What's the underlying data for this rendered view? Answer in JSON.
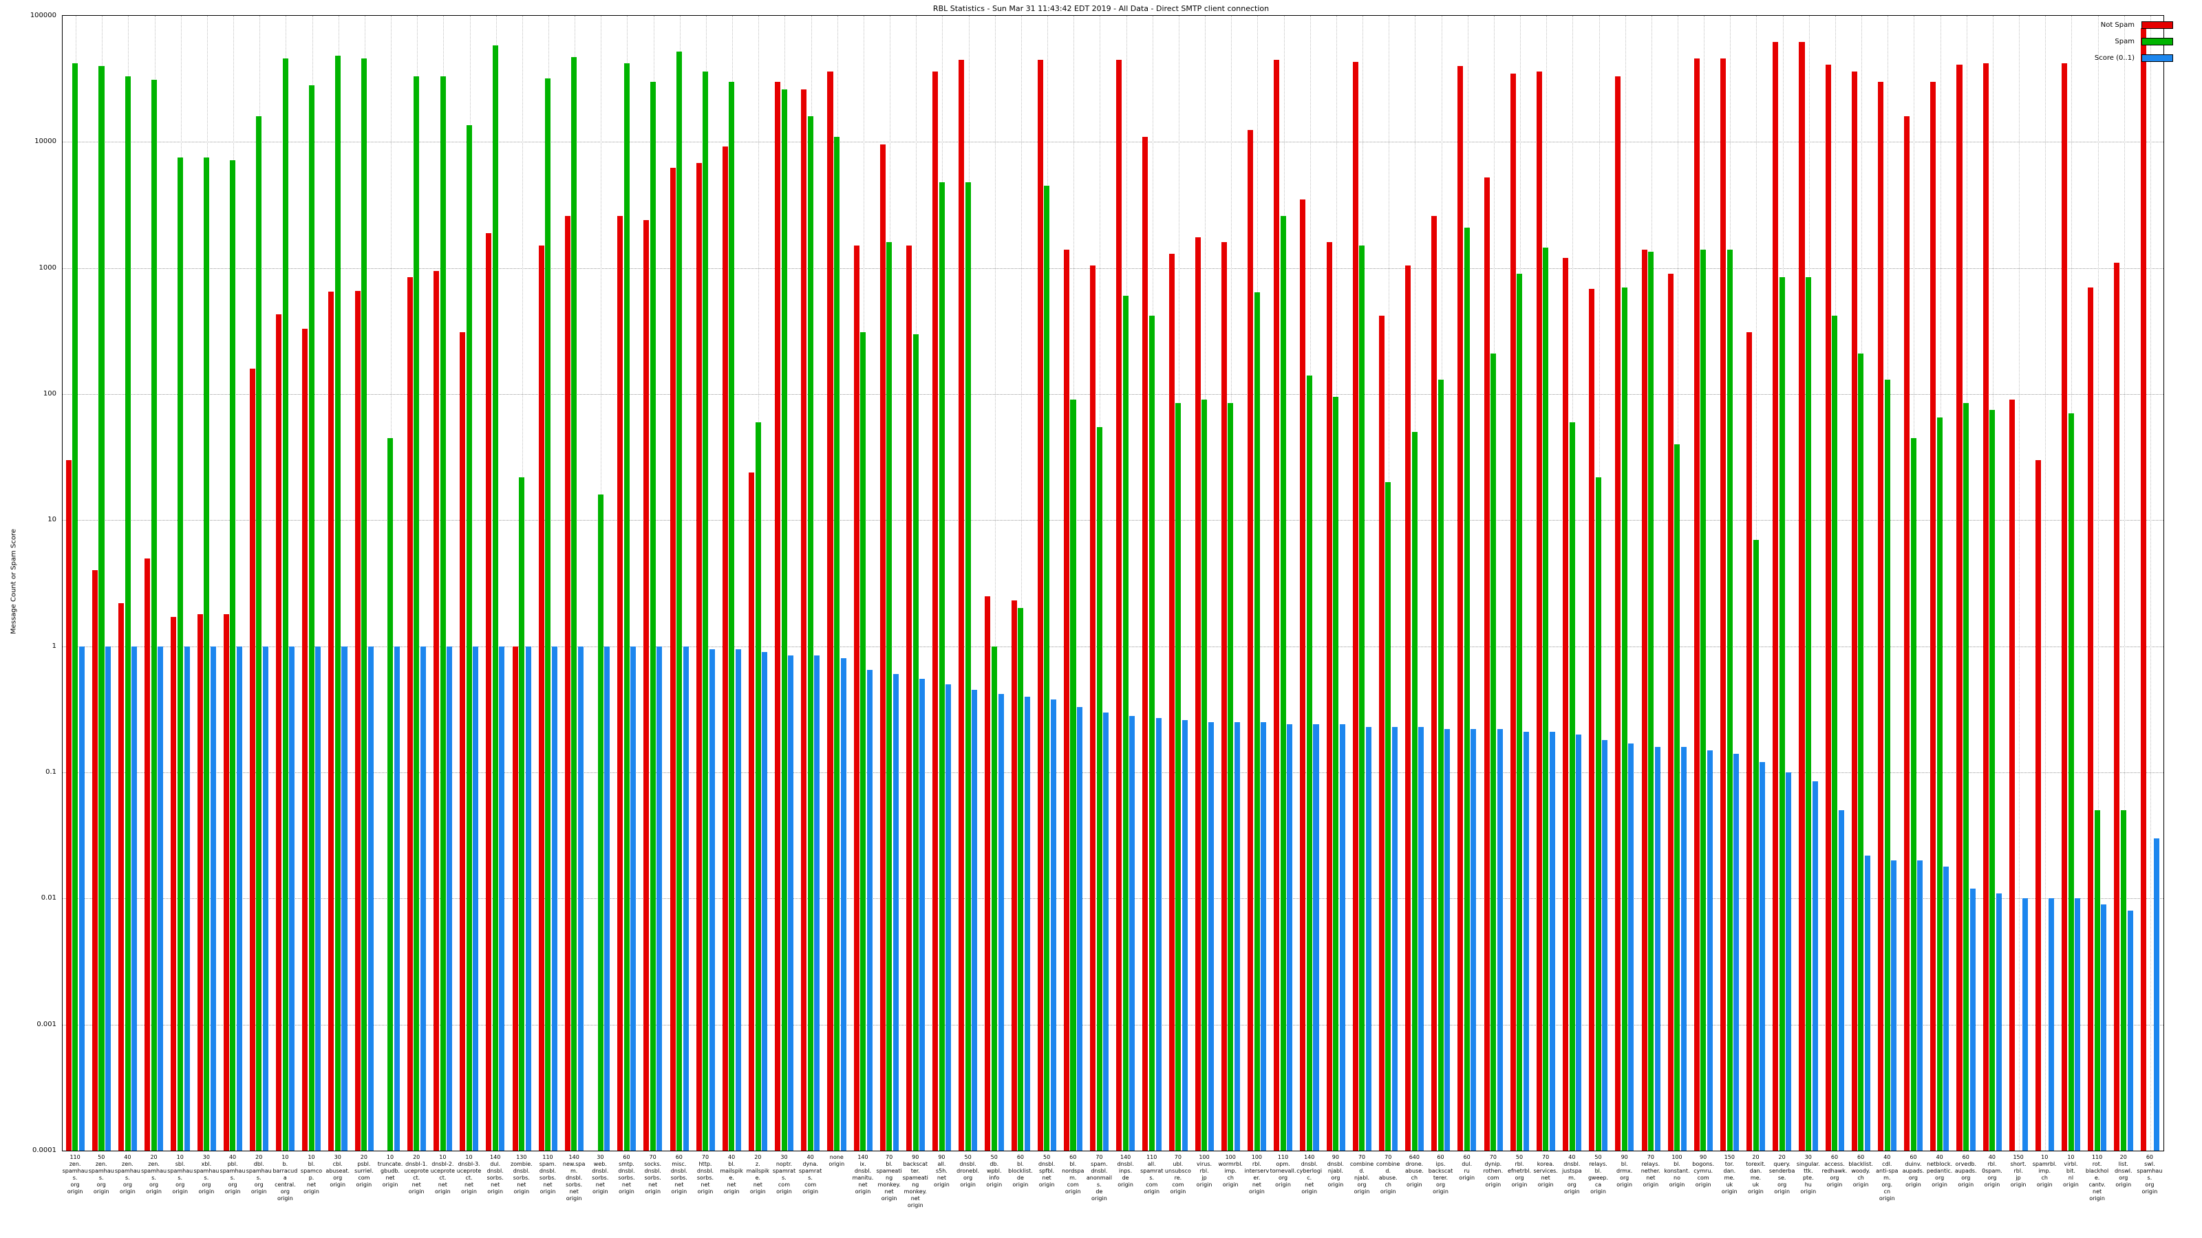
{
  "chart_data": {
    "type": "bar",
    "title": "RBL Statistics - Sun Mar 31 11:43:42 EDT 2019 - All Data - Direct SMTP client connection",
    "ylabel": "Message Count or Spam Score",
    "yscale": "log",
    "ylim": [
      0.0001,
      100000
    ],
    "yticks": [
      "100000",
      "10000",
      "1000",
      "100",
      "10",
      "1",
      "0.1",
      "0.01",
      "0.001",
      "0.0001"
    ],
    "grid": true,
    "legend_position": "top-right",
    "series": [
      {
        "name": "Not Spam",
        "color": "#e60000"
      },
      {
        "name": "Spam",
        "color": "#00b400"
      },
      {
        "name": "Score (0..1)",
        "color": "#1c86ee"
      }
    ],
    "groups": [
      {
        "label": [
          "110",
          "zen.",
          "spamhaus.",
          "org",
          "origin"
        ],
        "values": [
          30,
          42000,
          1
        ]
      },
      {
        "label": [
          "50",
          "zen.",
          "spamhaus.",
          "org",
          "origin"
        ],
        "values": [
          4,
          40000,
          1
        ]
      },
      {
        "label": [
          "40",
          "zen.",
          "spamhaus.",
          "org",
          "origin"
        ],
        "values": [
          2.2,
          33000,
          1
        ]
      },
      {
        "label": [
          "20",
          "zen.",
          "spamhaus.",
          "org",
          "origin"
        ],
        "values": [
          5,
          31000,
          1
        ]
      },
      {
        "label": [
          "10",
          "sbl.",
          "spamhaus.",
          "org",
          "origin"
        ],
        "values": [
          1.7,
          7500,
          1
        ]
      },
      {
        "label": [
          "30",
          "xbl.",
          "spamhaus.",
          "org",
          "origin"
        ],
        "values": [
          1.8,
          7500,
          1
        ]
      },
      {
        "label": [
          "40",
          "pbl.",
          "spamhaus.",
          "org",
          "origin"
        ],
        "values": [
          1.8,
          7200,
          1
        ]
      },
      {
        "label": [
          "20",
          "dbl.",
          "spamhaus.",
          "org",
          "origin"
        ],
        "values": [
          160,
          16000,
          1
        ]
      },
      {
        "label": [
          "10",
          "b.",
          "barracuda",
          "central.",
          "org",
          "origin"
        ],
        "values": [
          430,
          46000,
          1
        ]
      },
      {
        "label": [
          "10",
          "bl.",
          "spamcop.",
          "net",
          "origin"
        ],
        "values": [
          330,
          28000,
          1
        ]
      },
      {
        "label": [
          "30",
          "cbl.",
          "abuseat.",
          "org",
          "origin"
        ],
        "values": [
          650,
          48000,
          1
        ]
      },
      {
        "label": [
          "20",
          "psbl.",
          "surriel.",
          "com",
          "origin"
        ],
        "values": [
          660,
          46000,
          1
        ]
      },
      {
        "label": [
          "10",
          "truncate.",
          "gbudb.",
          "net",
          "origin"
        ],
        "values": [
          0,
          45,
          1
        ]
      },
      {
        "label": [
          "20",
          "dnsbl-1.",
          "uceprotect.",
          "net",
          "origin"
        ],
        "values": [
          850,
          33000,
          1
        ]
      },
      {
        "label": [
          "10",
          "dnsbl-2.",
          "uceprotect.",
          "net",
          "origin"
        ],
        "values": [
          950,
          33000,
          1
        ]
      },
      {
        "label": [
          "10",
          "dnsbl-3.",
          "uceprotect.",
          "net",
          "origin"
        ],
        "values": [
          310,
          13500,
          1
        ]
      },
      {
        "label": [
          "140",
          "dul.",
          "dnsbl.",
          "sorbs.",
          "net",
          "origin"
        ],
        "values": [
          1900,
          58000,
          1
        ]
      },
      {
        "label": [
          "130",
          "zombie.",
          "dnsbl.",
          "sorbs.",
          "net",
          "origin"
        ],
        "values": [
          1,
          22,
          1
        ]
      },
      {
        "label": [
          "110",
          "spam.",
          "dnsbl.",
          "sorbs.",
          "net",
          "origin"
        ],
        "values": [
          1500,
          32000,
          1
        ]
      },
      {
        "label": [
          "140",
          "new.spam.",
          "dnsbl.",
          "sorbs.",
          "net",
          "origin"
        ],
        "values": [
          2600,
          47000,
          1
        ]
      },
      {
        "label": [
          "30",
          "web.",
          "dnsbl.",
          "sorbs.",
          "net",
          "origin"
        ],
        "values": [
          0,
          16,
          1
        ]
      },
      {
        "label": [
          "60",
          "smtp.",
          "dnsbl.",
          "sorbs.",
          "net",
          "origin"
        ],
        "values": [
          2600,
          42000,
          1
        ]
      },
      {
        "label": [
          "70",
          "socks.",
          "dnsbl.",
          "sorbs.",
          "net",
          "origin"
        ],
        "values": [
          2400,
          30000,
          1
        ]
      },
      {
        "label": [
          "60",
          "misc.",
          "dnsbl.",
          "sorbs.",
          "net",
          "origin"
        ],
        "values": [
          6200,
          52000,
          1
        ]
      },
      {
        "label": [
          "70",
          "http.",
          "dnsbl.",
          "sorbs.",
          "net",
          "origin"
        ],
        "values": [
          6800,
          36000,
          0.95
        ]
      },
      {
        "label": [
          "40",
          "bl.",
          "mailspike.",
          "net",
          "origin"
        ],
        "values": [
          9200,
          30000,
          0.95
        ]
      },
      {
        "label": [
          "20",
          "z.",
          "mailspike.",
          "net",
          "origin"
        ],
        "values": [
          24,
          60,
          0.9
        ]
      },
      {
        "label": [
          "30",
          "noptr.",
          "spamrats.",
          "com",
          "origin"
        ],
        "values": [
          30000,
          26000,
          0.85
        ]
      },
      {
        "label": [
          "40",
          "dyna.",
          "spamrats.",
          "com",
          "origin"
        ],
        "values": [
          26000,
          16000,
          0.85
        ]
      },
      {
        "label": [
          "none",
          "origin"
        ],
        "values": [
          36000,
          11000,
          0.8
        ]
      },
      {
        "label": [
          "140",
          "ix.",
          "dnsbl.",
          "manitu.",
          "net",
          "origin"
        ],
        "values": [
          1500,
          310,
          0.65
        ]
      },
      {
        "label": [
          "70",
          "bl.",
          "spameating",
          "monkey.",
          "net",
          "origin"
        ],
        "values": [
          9500,
          1600,
          0.6
        ]
      },
      {
        "label": [
          "90",
          "backscatter.",
          "spameating",
          "monkey.",
          "net",
          "origin"
        ],
        "values": [
          1500,
          300,
          0.55
        ]
      },
      {
        "label": [
          "90",
          "all.",
          "s5h.",
          "net",
          "origin"
        ],
        "values": [
          36000,
          4800,
          0.5
        ]
      },
      {
        "label": [
          "50",
          "dnsbl.",
          "dronebl.",
          "org",
          "origin"
        ],
        "values": [
          45000,
          4800,
          0.45
        ]
      },
      {
        "label": [
          "50",
          "db.",
          "wpbl.",
          "info",
          "origin"
        ],
        "values": [
          2.5,
          1,
          0.42
        ]
      },
      {
        "label": [
          "60",
          "bl.",
          "blocklist.",
          "de",
          "origin"
        ],
        "values": [
          2.3,
          2,
          0.4
        ]
      },
      {
        "label": [
          "50",
          "dnsbl.",
          "spfbl.",
          "net",
          "origin"
        ],
        "values": [
          45000,
          4500,
          0.38
        ]
      },
      {
        "label": [
          "60",
          "bl.",
          "nordspam.",
          "com",
          "origin"
        ],
        "values": [
          1400,
          90,
          0.33
        ]
      },
      {
        "label": [
          "70",
          "spam.",
          "dnsbl.",
          "anonmails.",
          "de",
          "origin"
        ],
        "values": [
          1050,
          55,
          0.3
        ]
      },
      {
        "label": [
          "140",
          "dnsbl.",
          "inps.",
          "de",
          "origin"
        ],
        "values": [
          45000,
          600,
          0.28
        ]
      },
      {
        "label": [
          "110",
          "all.",
          "spamrats.",
          "com",
          "origin"
        ],
        "values": [
          11000,
          420,
          0.27
        ]
      },
      {
        "label": [
          "70",
          "ubl.",
          "unsubscore.",
          "com",
          "origin"
        ],
        "values": [
          1300,
          85,
          0.26
        ]
      },
      {
        "label": [
          "100",
          "virus.",
          "rbl.",
          "jp",
          "origin"
        ],
        "values": [
          1750,
          90,
          0.25
        ]
      },
      {
        "label": [
          "100",
          "wormrbl.",
          "imp.",
          "ch",
          "origin"
        ],
        "values": [
          1600,
          85,
          0.25
        ]
      },
      {
        "label": [
          "100",
          "rbl.",
          "interserver.",
          "net",
          "origin"
        ],
        "values": [
          12500,
          640,
          0.25
        ]
      },
      {
        "label": [
          "110",
          "opm.",
          "tornevall.",
          "org",
          "origin"
        ],
        "values": [
          45000,
          2600,
          0.24
        ]
      },
      {
        "label": [
          "140",
          "dnsbl.",
          "cyberlogic.",
          "net",
          "origin"
        ],
        "values": [
          3500,
          140,
          0.24
        ]
      },
      {
        "label": [
          "90",
          "dnsbl.",
          "njabl.",
          "org",
          "origin"
        ],
        "values": [
          1600,
          95,
          0.24
        ]
      },
      {
        "label": [
          "70",
          "combined.",
          "njabl.",
          "org",
          "origin"
        ],
        "values": [
          43000,
          1500,
          0.23
        ]
      },
      {
        "label": [
          "70",
          "combined.",
          "abuse.",
          "ch",
          "origin"
        ],
        "values": [
          420,
          20,
          0.23
        ]
      },
      {
        "label": [
          "640",
          "drone.",
          "abuse.",
          "ch",
          "origin"
        ],
        "values": [
          1050,
          50,
          0.23
        ]
      },
      {
        "label": [
          "60",
          "ips.",
          "backscatterer.",
          "org",
          "origin"
        ],
        "values": [
          2600,
          130,
          0.22
        ]
      },
      {
        "label": [
          "60",
          "dul.",
          "ru",
          "origin"
        ],
        "values": [
          40000,
          2100,
          0.22
        ]
      },
      {
        "label": [
          "70",
          "dynip.",
          "rothen.",
          "com",
          "origin"
        ],
        "values": [
          5200,
          210,
          0.22
        ]
      },
      {
        "label": [
          "50",
          "rbl.",
          "efnetrbl.",
          "org",
          "origin"
        ],
        "values": [
          35000,
          900,
          0.21
        ]
      },
      {
        "label": [
          "70",
          "korea.",
          "services.",
          "net",
          "origin"
        ],
        "values": [
          36000,
          1450,
          0.21
        ]
      },
      {
        "label": [
          "40",
          "dnsbl.",
          "justspam.",
          "org",
          "origin"
        ],
        "values": [
          1200,
          60,
          0.2
        ]
      },
      {
        "label": [
          "50",
          "relays.",
          "bl.",
          "gweep.",
          "ca",
          "origin"
        ],
        "values": [
          680,
          22,
          0.18
        ]
      },
      {
        "label": [
          "90",
          "bl.",
          "drmx.",
          "org",
          "origin"
        ],
        "values": [
          33000,
          700,
          0.17
        ]
      },
      {
        "label": [
          "70",
          "relays.",
          "nether.",
          "net",
          "origin"
        ],
        "values": [
          1400,
          1350,
          0.16
        ]
      },
      {
        "label": [
          "100",
          "bl.",
          "konstant.",
          "no",
          "origin"
        ],
        "values": [
          900,
          40,
          0.16
        ]
      },
      {
        "label": [
          "90",
          "bogons.",
          "cymru.",
          "com",
          "origin"
        ],
        "values": [
          46000,
          1400,
          0.15
        ]
      },
      {
        "label": [
          "150",
          "tor.",
          "dan.",
          "me.",
          "uk",
          "origin"
        ],
        "values": [
          46000,
          1400,
          0.14
        ]
      },
      {
        "label": [
          "20",
          "torexit.",
          "dan.",
          "me.",
          "uk",
          "origin"
        ],
        "values": [
          310,
          7,
          0.12
        ]
      },
      {
        "label": [
          "20",
          "query.",
          "senderbase.",
          "org",
          "origin"
        ],
        "values": [
          62000,
          850,
          0.1
        ]
      },
      {
        "label": [
          "30",
          "singular.",
          "ttk.",
          "pte.",
          "hu",
          "origin"
        ],
        "values": [
          62000,
          850,
          0.085
        ]
      },
      {
        "label": [
          "60",
          "access.",
          "redhawk.",
          "org",
          "origin"
        ],
        "values": [
          41000,
          420,
          0.05
        ]
      },
      {
        "label": [
          "60",
          "blacklist.",
          "woody.",
          "ch",
          "origin"
        ],
        "values": [
          36000,
          210,
          0.022
        ]
      },
      {
        "label": [
          "40",
          "cdl.",
          "anti-spam.",
          "org.",
          "cn",
          "origin"
        ],
        "values": [
          30000,
          130,
          0.02
        ]
      },
      {
        "label": [
          "60",
          "duinv.",
          "aupads.",
          "org",
          "origin"
        ],
        "values": [
          16000,
          45,
          0.02
        ]
      },
      {
        "label": [
          "40",
          "netblock.",
          "pedantic.",
          "org",
          "origin"
        ],
        "values": [
          30000,
          65,
          0.018
        ]
      },
      {
        "label": [
          "60",
          "orvedb.",
          "aupads.",
          "org",
          "origin"
        ],
        "values": [
          41000,
          85,
          0.012
        ]
      },
      {
        "label": [
          "40",
          "rbl.",
          "0spam.",
          "org",
          "origin"
        ],
        "values": [
          42000,
          75,
          0.011
        ]
      },
      {
        "label": [
          "150",
          "short.",
          "rbl.",
          "jp",
          "origin"
        ],
        "values": [
          90,
          0,
          0.01
        ]
      },
      {
        "label": [
          "10",
          "spamrbl.",
          "imp.",
          "ch",
          "origin"
        ],
        "values": [
          30,
          0,
          0.01
        ]
      },
      {
        "label": [
          "10",
          "virbl.",
          "bit.",
          "nl",
          "origin"
        ],
        "values": [
          42000,
          70,
          0.01
        ]
      },
      {
        "label": [
          "110",
          "rot.",
          "blackhole.",
          "cantv.",
          "net",
          "origin"
        ],
        "values": [
          700,
          0.05,
          0.009
        ]
      },
      {
        "label": [
          "20",
          "list.",
          "dnswl.",
          "org",
          "origin"
        ],
        "values": [
          1100,
          0.05,
          0.008
        ]
      },
      {
        "label": [
          "60",
          "swl.",
          "spamhaus.",
          "org",
          "origin"
        ],
        "values": [
          80000,
          0,
          0.03
        ]
      }
    ]
  }
}
